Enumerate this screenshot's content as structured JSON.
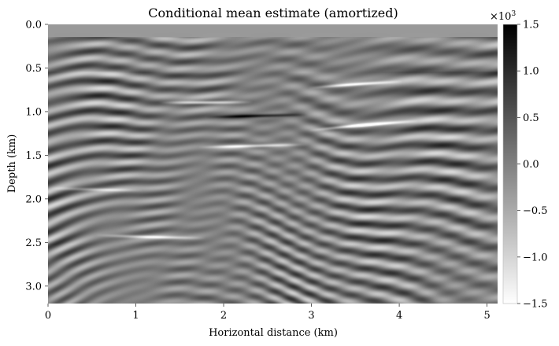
{
  "chart_data": {
    "type": "heatmap",
    "title": "Conditional mean estimate (amortized)",
    "xlabel": "Horizontal distance (km)",
    "ylabel": "Depth (km)",
    "xlim": [
      0,
      5.12
    ],
    "ylim": [
      3.2,
      0.0
    ],
    "x_ticks": [
      0,
      1,
      2,
      3,
      4,
      5
    ],
    "x_tick_labels": [
      "0",
      "1",
      "2",
      "3",
      "4",
      "5"
    ],
    "y_ticks": [
      0.0,
      0.5,
      1.0,
      1.5,
      2.0,
      2.5,
      3.0
    ],
    "y_tick_labels": [
      "0.0",
      "0.5",
      "1.0",
      "1.5",
      "2.0",
      "2.5",
      "3.0"
    ],
    "colormap": "gray_reversed",
    "colors": {
      "min_color": "#ffffff",
      "max_color": "#000000",
      "mid_color": "#808080"
    },
    "grid": false,
    "colorbar": {
      "multiplier_base": "×10",
      "multiplier_exp": "3",
      "min": -1.5,
      "max": 1.5,
      "ticks": [
        1.5,
        1.0,
        0.5,
        0.0,
        -0.5,
        -1.0,
        -1.5
      ],
      "tick_labels": [
        "1.5",
        "1.0",
        "0.5",
        "0.0",
        "−0.5",
        "−1.0",
        "−1.5"
      ]
    }
  }
}
